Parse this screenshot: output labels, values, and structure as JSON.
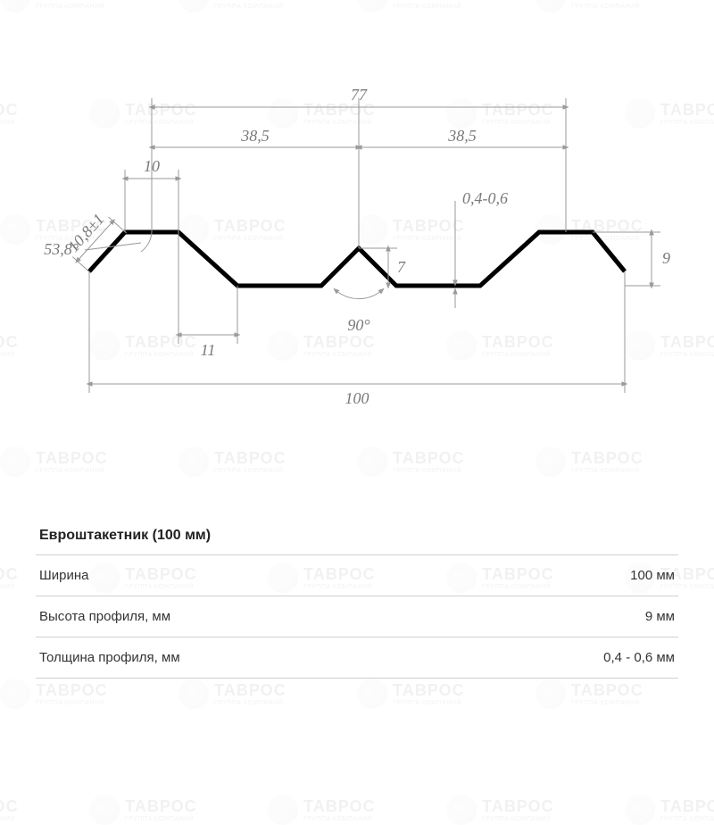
{
  "watermark": {
    "text": "ТАВРОС",
    "subtext": "ГРУППА КОМПАНИЙ"
  },
  "diagram": {
    "type": "engineering-profile",
    "profile_stroke": "#000000",
    "profile_stroke_width": 5,
    "dim_color": "#9a9a9a",
    "label_color": "#7a7a7a",
    "label_fontsize_pt": 14,
    "label_fontstyle": "italic",
    "background_color": "#ffffff",
    "dimensions": {
      "overall_width": "100",
      "upper_span": "77",
      "half_upper_left": "38,5",
      "half_upper_right": "38,5",
      "top_flat": "10",
      "left_slope_width": "11",
      "left_edge_len": "10,8±1",
      "left_angle": "53,8°",
      "center_angle": "90°",
      "center_peak_height": "7",
      "thickness": "0,4-0,6",
      "right_height": "9"
    }
  },
  "specs": {
    "title": "Евроштакетник (100 мм)",
    "rows": [
      {
        "label": "Ширина",
        "value": "100 мм"
      },
      {
        "label": "Высота профиля, мм",
        "value": "9 мм"
      },
      {
        "label": "Толщина профиля, мм",
        "value": "0,4 - 0,6 мм"
      }
    ]
  }
}
